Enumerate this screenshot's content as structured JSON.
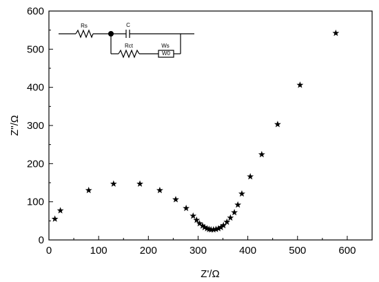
{
  "chart_data": {
    "type": "scatter",
    "xlabel": "Z'/Ω",
    "ylabel": "Z''/Ω",
    "xlim": [
      0,
      650
    ],
    "ylim": [
      0,
      600
    ],
    "xticks": [
      "0",
      "100",
      "200",
      "300",
      "400",
      "500",
      "600"
    ],
    "yticks": [
      "0",
      "100",
      "200",
      "300",
      "400",
      "500",
      "600"
    ],
    "grid": false,
    "marker": "star",
    "marker_color": "#000000",
    "series": [
      {
        "x": [
          12,
          23,
          80,
          130,
          183,
          223,
          255,
          276,
          290,
          297,
          303,
          309,
          313,
          318,
          322,
          326,
          331,
          336,
          341,
          346,
          351,
          358,
          365,
          373,
          380,
          388,
          405,
          428,
          460,
          505,
          577
        ],
        "y": [
          55,
          77,
          130,
          147,
          147,
          130,
          106,
          83,
          63,
          52,
          43,
          37,
          33,
          30,
          28,
          27,
          27,
          28,
          30,
          33,
          38,
          47,
          58,
          72,
          92,
          121,
          166,
          224,
          303,
          406,
          542
        ]
      }
    ]
  },
  "circuit": {
    "rs_label": "Rs",
    "c_label": "C",
    "rct_label": "Rct",
    "ws_label": "Ws",
    "w0_label": "W0"
  }
}
